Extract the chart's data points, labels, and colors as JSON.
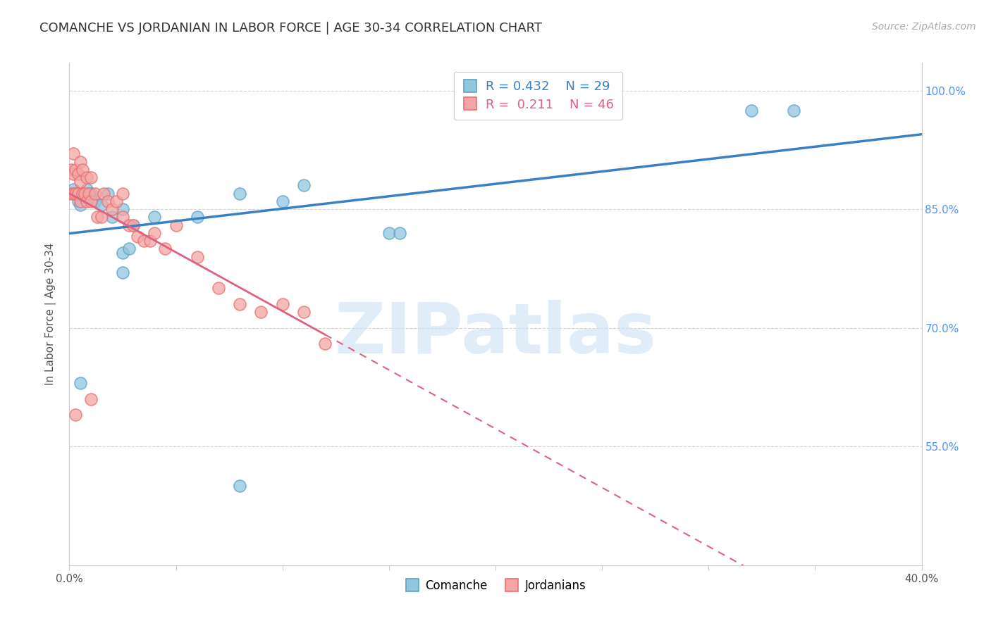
{
  "title": "COMANCHE VS JORDANIAN IN LABOR FORCE | AGE 30-34 CORRELATION CHART",
  "source": "Source: ZipAtlas.com",
  "ylabel": "In Labor Force | Age 30-34",
  "legend_r": [
    "R = 0.432",
    "R =  0.211"
  ],
  "legend_n": [
    "N = 29",
    "N = 46"
  ],
  "comanche_color": "#92c5de",
  "jordanian_color": "#f4a6a6",
  "comanche_edge_color": "#5ba3cb",
  "jordanian_edge_color": "#e87070",
  "comanche_line_color": "#3a80c7",
  "jordanian_line_color": "#e06080",
  "background_color": "#ffffff",
  "watermark_text": "ZIPatlas",
  "xlim": [
    0.0,
    0.4
  ],
  "ylim": [
    0.4,
    1.035
  ],
  "xtick_positions": [
    0.0,
    0.05,
    0.1,
    0.15,
    0.2,
    0.25,
    0.3,
    0.35,
    0.4
  ],
  "xtick_labels": [
    "0.0%",
    "",
    "",
    "",
    "",
    "",
    "",
    "",
    "40.0%"
  ],
  "ytick_positions": [
    0.4,
    0.55,
    0.7,
    0.85,
    1.0
  ],
  "ytick_labels_right": [
    "",
    "55.0%",
    "70.0%",
    "85.0%",
    "100.0%"
  ],
  "comanche_x": [
    0.002,
    0.003,
    0.004,
    0.005,
    0.006,
    0.007,
    0.008,
    0.009,
    0.01,
    0.012,
    0.015,
    0.018,
    0.02,
    0.025,
    0.03,
    0.04,
    0.06,
    0.08,
    0.1,
    0.11,
    0.15,
    0.155,
    0.025,
    0.028,
    0.32,
    0.34,
    0.025,
    0.005,
    0.08
  ],
  "comanche_y": [
    0.875,
    0.87,
    0.86,
    0.855,
    0.87,
    0.865,
    0.875,
    0.87,
    0.87,
    0.86,
    0.855,
    0.87,
    0.84,
    0.85,
    0.83,
    0.84,
    0.84,
    0.87,
    0.86,
    0.88,
    0.82,
    0.82,
    0.795,
    0.8,
    0.975,
    0.975,
    0.77,
    0.63,
    0.5
  ],
  "jordanian_x": [
    0.001,
    0.001,
    0.002,
    0.002,
    0.002,
    0.003,
    0.003,
    0.004,
    0.004,
    0.005,
    0.005,
    0.005,
    0.006,
    0.006,
    0.007,
    0.008,
    0.008,
    0.009,
    0.01,
    0.01,
    0.012,
    0.013,
    0.015,
    0.016,
    0.018,
    0.02,
    0.022,
    0.025,
    0.025,
    0.028,
    0.03,
    0.032,
    0.035,
    0.038,
    0.04,
    0.045,
    0.05,
    0.06,
    0.07,
    0.08,
    0.09,
    0.1,
    0.11,
    0.12,
    0.003,
    0.01
  ],
  "jordanian_y": [
    0.87,
    0.9,
    0.87,
    0.895,
    0.92,
    0.87,
    0.9,
    0.87,
    0.895,
    0.86,
    0.885,
    0.91,
    0.87,
    0.9,
    0.87,
    0.86,
    0.89,
    0.87,
    0.86,
    0.89,
    0.87,
    0.84,
    0.84,
    0.87,
    0.86,
    0.85,
    0.86,
    0.84,
    0.87,
    0.83,
    0.83,
    0.815,
    0.81,
    0.81,
    0.82,
    0.8,
    0.83,
    0.79,
    0.75,
    0.73,
    0.72,
    0.73,
    0.72,
    0.68,
    0.59,
    0.61
  ],
  "grid_color": "#d0d0d0",
  "spine_color": "#cccccc",
  "right_axis_color": "#4d94ff"
}
